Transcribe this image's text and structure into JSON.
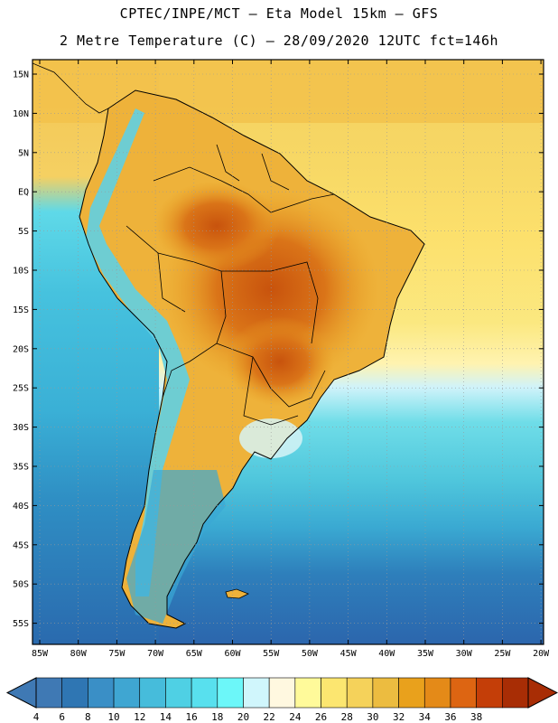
{
  "title_line1": "CPTEC/INPE/MCT –  Eta Model 15km – GFS",
  "title_line2": "2 Metre Temperature (C) – 28/09/2020 12UTC fct=146h",
  "lat_labels": [
    "15N",
    "10N",
    "5N",
    "EQ",
    "5S",
    "10S",
    "15S",
    "20S",
    "25S",
    "30S",
    "35S",
    "40S",
    "45S",
    "50S",
    "55S"
  ],
  "lon_labels": [
    "85W",
    "80W",
    "75W",
    "70W",
    "65W",
    "60W",
    "55W",
    "50W",
    "45W",
    "40W",
    "35W",
    "30W",
    "25W",
    "20W"
  ],
  "colorbar": {
    "labels": [
      "4",
      "6",
      "8",
      "10",
      "12",
      "14",
      "16",
      "18",
      "20",
      "22",
      "24",
      "26",
      "28",
      "30",
      "32",
      "34",
      "36",
      "38"
    ],
    "colors": [
      "#3f79b4",
      "#2f76b3",
      "#3a8fc6",
      "#3fa6d2",
      "#46bcdb",
      "#4fd0e4",
      "#58e0ee",
      "#6cf7f9",
      "#d0f6fc",
      "#fff8e0",
      "#fffa9a",
      "#fce670",
      "#f5d25a",
      "#ecbc40",
      "#e9a11c",
      "#e48a18",
      "#dd6512",
      "#c43e08",
      "#a82d05"
    ],
    "under_color": "#3f79b4",
    "over_color": "#a82d05"
  }
}
